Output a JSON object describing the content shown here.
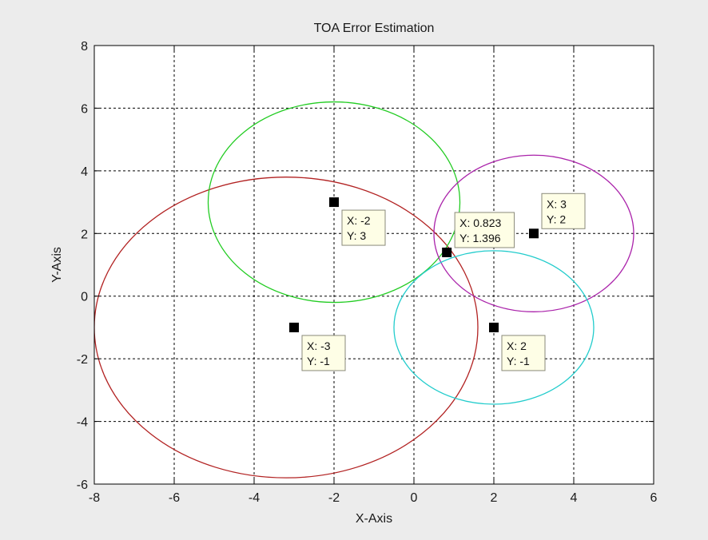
{
  "chart_data": {
    "type": "scatter",
    "title": "TOA Error Estimation",
    "xlabel": "X-Axis",
    "ylabel": "Y-Axis",
    "xlim": [
      -8,
      6
    ],
    "ylim": [
      -6,
      8
    ],
    "xticks": [
      -8,
      -6,
      -4,
      -2,
      0,
      2,
      4,
      6
    ],
    "yticks": [
      -6,
      -4,
      -2,
      0,
      2,
      4,
      6,
      8
    ],
    "grid": true,
    "circles": [
      {
        "color": "#b22222",
        "cx": -3.2,
        "cy": -1.0,
        "rx": 4.8,
        "ry": 4.8
      },
      {
        "color": "#22cc22",
        "cx": -2.0,
        "cy": 3.0,
        "rx": 3.15,
        "ry": 3.2
      },
      {
        "color": "#aa22aa",
        "cx": 3.0,
        "cy": 2.0,
        "rx": 2.5,
        "ry": 2.5
      },
      {
        "color": "#22cccc",
        "cx": 2.0,
        "cy": -1.0,
        "rx": 2.5,
        "ry": 2.45
      }
    ],
    "points": [
      {
        "x": -2,
        "y": 3,
        "label_x": "X: -2",
        "label_y": "Y: 3",
        "tip": "below-right"
      },
      {
        "x": -3,
        "y": -1,
        "label_x": "X: -3",
        "label_y": "Y: -1",
        "tip": "below-right"
      },
      {
        "x": 3,
        "y": 2,
        "label_x": "X: 3",
        "label_y": "Y: 2",
        "tip": "above-right"
      },
      {
        "x": 2,
        "y": -1,
        "label_x": "X: 2",
        "label_y": "Y: -1",
        "tip": "below-right"
      },
      {
        "x": 0.823,
        "y": 1.396,
        "label_x": "X: 0.823",
        "label_y": "Y: 1.396",
        "tip": "above-right"
      }
    ]
  }
}
